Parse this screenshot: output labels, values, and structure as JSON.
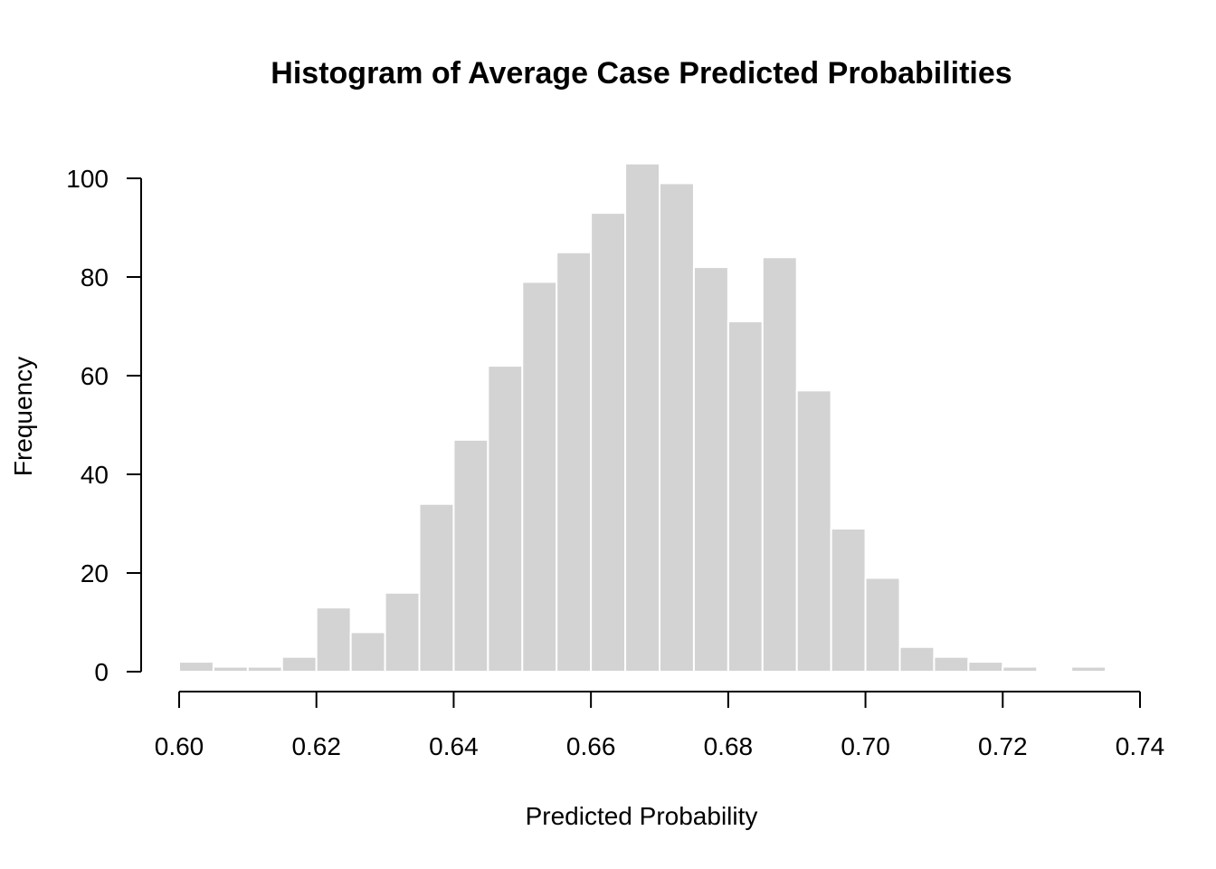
{
  "chart_data": {
    "type": "bar",
    "title": "Histogram of Average Case Predicted Probabilities",
    "xlabel": "Predicted Probability",
    "ylabel": "Frequency",
    "bin_width": 0.005,
    "bins": [
      {
        "start": 0.6,
        "end": 0.605,
        "count": 2
      },
      {
        "start": 0.605,
        "end": 0.61,
        "count": 1
      },
      {
        "start": 0.61,
        "end": 0.615,
        "count": 1
      },
      {
        "start": 0.615,
        "end": 0.62,
        "count": 3
      },
      {
        "start": 0.62,
        "end": 0.625,
        "count": 13
      },
      {
        "start": 0.625,
        "end": 0.63,
        "count": 8
      },
      {
        "start": 0.63,
        "end": 0.635,
        "count": 16
      },
      {
        "start": 0.635,
        "end": 0.64,
        "count": 34
      },
      {
        "start": 0.64,
        "end": 0.645,
        "count": 47
      },
      {
        "start": 0.645,
        "end": 0.65,
        "count": 62
      },
      {
        "start": 0.65,
        "end": 0.655,
        "count": 79
      },
      {
        "start": 0.655,
        "end": 0.66,
        "count": 85
      },
      {
        "start": 0.66,
        "end": 0.665,
        "count": 93
      },
      {
        "start": 0.665,
        "end": 0.67,
        "count": 103
      },
      {
        "start": 0.67,
        "end": 0.675,
        "count": 99
      },
      {
        "start": 0.675,
        "end": 0.68,
        "count": 82
      },
      {
        "start": 0.68,
        "end": 0.685,
        "count": 71
      },
      {
        "start": 0.685,
        "end": 0.69,
        "count": 84
      },
      {
        "start": 0.69,
        "end": 0.695,
        "count": 57
      },
      {
        "start": 0.695,
        "end": 0.7,
        "count": 29
      },
      {
        "start": 0.7,
        "end": 0.705,
        "count": 19
      },
      {
        "start": 0.705,
        "end": 0.71,
        "count": 5
      },
      {
        "start": 0.71,
        "end": 0.715,
        "count": 3
      },
      {
        "start": 0.715,
        "end": 0.72,
        "count": 2
      },
      {
        "start": 0.72,
        "end": 0.725,
        "count": 1
      },
      {
        "start": 0.725,
        "end": 0.73,
        "count": 0
      },
      {
        "start": 0.73,
        "end": 0.735,
        "count": 1
      }
    ],
    "xlim": [
      0.6,
      0.74
    ],
    "ylim": [
      0,
      100
    ],
    "x_ticks": [
      "0.60",
      "0.62",
      "0.64",
      "0.66",
      "0.68",
      "0.70",
      "0.72",
      "0.74"
    ],
    "y_ticks": [
      "0",
      "20",
      "40",
      "60",
      "80",
      "100"
    ],
    "grid": false,
    "legend": "none",
    "bar_color": "#d3d3d3",
    "bar_border_color": "#ffffff"
  }
}
